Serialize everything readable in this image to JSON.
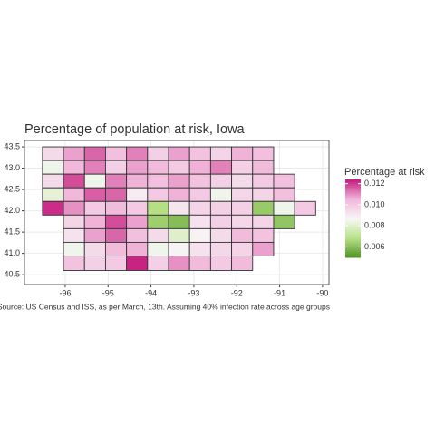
{
  "chart_data": {
    "type": "choropleth",
    "title": "Percentage of population at risk, Iowa",
    "caption": "Source: US Census and ISS, as per March, 13th. Assuming 40% infection rate across age groups",
    "legend_title": "Percentage at risk",
    "xlim": [
      -96.95,
      -89.85
    ],
    "ylim": [
      40.27,
      43.65
    ],
    "xticks": [
      -96,
      -95,
      -94,
      -93,
      -92,
      -91,
      -90
    ],
    "yticks": [
      40.5,
      {
        "value": 41,
        "label": "41.0"
      },
      41.5,
      {
        "value": 42,
        "label": "42.0"
      },
      42.5,
      {
        "value": 43,
        "label": "43.0"
      },
      43.5
    ],
    "grid": true,
    "color_scale": {
      "colors": [
        "#4d9221",
        "#b8e186",
        "#f7f7f7",
        "#f1b6da",
        "#c51b7d"
      ],
      "lim": [
        0.005,
        0.0124
      ],
      "ticks": [
        0.006,
        0.008,
        {
          "value": 0.01,
          "label": "0.010"
        },
        0.012
      ]
    },
    "rows": [
      {
        "lat": [
          43.18,
          43.5
        ],
        "lon": [
          -96.53,
          -96.04,
          -95.55,
          -95.06,
          -94.57,
          -94.08,
          -93.59,
          -93.1,
          -92.61,
          -92.12,
          -91.63,
          -91.14
        ],
        "values": [
          0.0095,
          0.0108,
          0.0115,
          0.0103,
          0.0112,
          0.0098,
          0.0108,
          0.0102,
          0.0097,
          0.0106,
          0.0103
        ]
      },
      {
        "lat": [
          42.86,
          43.18
        ],
        "lon": [
          -96.53,
          -96.04,
          -95.55,
          -95.06,
          -94.57,
          -94.08,
          -93.59,
          -93.1,
          -92.61,
          -92.12,
          -91.63,
          -91.14
        ],
        "values": [
          0.0085,
          0.0105,
          0.0112,
          0.0098,
          0.0108,
          0.0104,
          0.01,
          0.0106,
          0.0112,
          0.0098,
          0.0104
        ]
      },
      {
        "lat": [
          42.54,
          42.86
        ],
        "lon": [
          -96.53,
          -96.04,
          -95.55,
          -95.06,
          -94.57,
          -94.08,
          -93.59,
          -93.1,
          -92.61,
          -92.12,
          -91.63,
          -91.14,
          -90.65
        ],
        "values": [
          0.0095,
          0.0118,
          0.0085,
          0.0112,
          0.0106,
          0.0103,
          0.0108,
          0.0102,
          0.0098,
          0.0095,
          0.01,
          0.0103
        ]
      },
      {
        "lat": [
          42.22,
          42.54
        ],
        "lon": [
          -96.53,
          -96.04,
          -95.55,
          -95.06,
          -94.57,
          -94.08,
          -93.59,
          -93.1,
          -92.61,
          -92.12,
          -91.63,
          -91.14,
          -90.65
        ],
        "values": [
          0.0082,
          0.0105,
          0.0116,
          0.0115,
          0.009,
          0.01,
          0.0106,
          0.01,
          0.0085,
          0.0096,
          0.0097,
          0.0103
        ]
      },
      {
        "lat": [
          41.9,
          42.22
        ],
        "lon": [
          -96.53,
          -96.04,
          -95.55,
          -95.06,
          -94.57,
          -94.08,
          -93.59,
          -93.1,
          -92.61,
          -92.12,
          -91.63,
          -91.14,
          -90.65,
          -90.16
        ],
        "values": [
          0.0122,
          0.011,
          0.01,
          0.0104,
          0.01,
          0.0068,
          0.0092,
          0.0097,
          0.0098,
          0.0098,
          0.0063,
          0.0085,
          0.01
        ]
      },
      {
        "lat": [
          41.58,
          41.9
        ],
        "lon": [
          -96.04,
          -95.55,
          -95.06,
          -94.57,
          -94.08,
          -93.59,
          -93.1,
          -92.61,
          -92.12,
          -91.63,
          -91.14,
          -90.65
        ],
        "values": [
          0.0097,
          0.0106,
          0.0118,
          0.0108,
          0.0064,
          0.006,
          0.0093,
          0.0098,
          0.0096,
          0.0097,
          0.0062
        ]
      },
      {
        "lat": [
          41.26,
          41.58
        ],
        "lon": [
          -96.04,
          -95.55,
          -95.06,
          -94.57,
          -94.08,
          -93.59,
          -93.1,
          -92.61,
          -92.12,
          -91.63,
          -91.14
        ],
        "values": [
          0.0093,
          0.0108,
          0.0115,
          0.0103,
          0.0095,
          0.008,
          0.0088,
          0.0095,
          0.0104,
          0.0102
        ]
      },
      {
        "lat": [
          40.94,
          41.26
        ],
        "lon": [
          -96.04,
          -95.55,
          -95.06,
          -94.57,
          -94.08,
          -93.59,
          -93.1,
          -92.61,
          -92.12,
          -91.63,
          -91.14
        ],
        "values": [
          0.0085,
          0.0095,
          0.0104,
          0.0106,
          0.0085,
          0.0088,
          0.0093,
          0.0096,
          0.0097,
          0.0108
        ]
      },
      {
        "lat": [
          40.6,
          40.94
        ],
        "lon": [
          -96.04,
          -95.55,
          -95.06,
          -94.57,
          -94.08,
          -93.59,
          -93.1,
          -92.61,
          -92.12,
          -91.63
        ],
        "values": [
          0.0102,
          0.0098,
          0.01,
          0.0123,
          0.0098,
          0.011,
          0.0104,
          0.01,
          0.0104
        ]
      }
    ]
  }
}
